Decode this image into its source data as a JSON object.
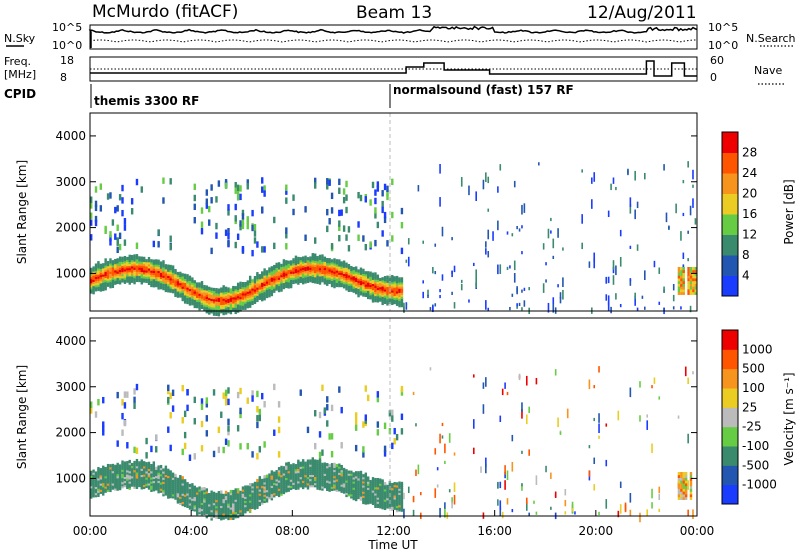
{
  "header": {
    "station": "McMurdo (fitACF)",
    "beam": "Beam 13",
    "date": "12/Aug/2011"
  },
  "noise_panel": {
    "left_label": "N.Sky",
    "left_ticks": [
      "10^5",
      "10^0"
    ],
    "right_label": "N.Search",
    "right_ticks": [
      "10^5",
      "10^0"
    ]
  },
  "freq_panel": {
    "left_label_1": "Freq.",
    "left_label_2": "[MHz]",
    "left_ticks": [
      "18",
      "8"
    ],
    "right_label": "Nave",
    "right_ticks": [
      "60",
      "0"
    ]
  },
  "cpid": {
    "label": "CPID",
    "segments": [
      {
        "text": "themis 3300 RF",
        "start_hour": 0
      },
      {
        "text": "normalsound (fast) 157 RF",
        "start_hour": 12
      }
    ]
  },
  "chart_data": [
    {
      "type": "heatmap",
      "name": "power",
      "ylabel": "Slant Range [km]",
      "xlabel": "",
      "x_range_hours": [
        0,
        24
      ],
      "ylim": [
        180,
        4500
      ],
      "yticks": [
        1000,
        2000,
        3000,
        4000
      ],
      "colorbar": {
        "label": "Power [dB]",
        "ticks": [
          "4",
          "8",
          "12",
          "16",
          "20",
          "24",
          "28"
        ],
        "colors": [
          "#1a3cff",
          "#2256b0",
          "#3a8a6e",
          "#66cc44",
          "#eacc22",
          "#f7941d",
          "#ff5500",
          "#ee0000"
        ]
      }
    },
    {
      "type": "heatmap",
      "name": "velocity",
      "ylabel": "Slant Range [km]",
      "xlabel": "Time UT",
      "x_range_hours": [
        0,
        24
      ],
      "xticks": [
        "00:00",
        "04:00",
        "08:00",
        "12:00",
        "16:00",
        "20:00",
        "00:00"
      ],
      "ylim": [
        180,
        4500
      ],
      "yticks": [
        1000,
        2000,
        3000,
        4000
      ],
      "colorbar": {
        "label": "Velocity [m s⁻¹]",
        "ticks": [
          "1000",
          "500",
          "100",
          "25",
          "-25",
          "-100",
          "-500",
          "-1000"
        ],
        "colors": [
          "#1a3cff",
          "#2256b0",
          "#3a8a6e",
          "#66cc44",
          "#bbbbbb",
          "#eacc22",
          "#f7941d",
          "#ff5500",
          "#ee0000"
        ]
      }
    }
  ]
}
